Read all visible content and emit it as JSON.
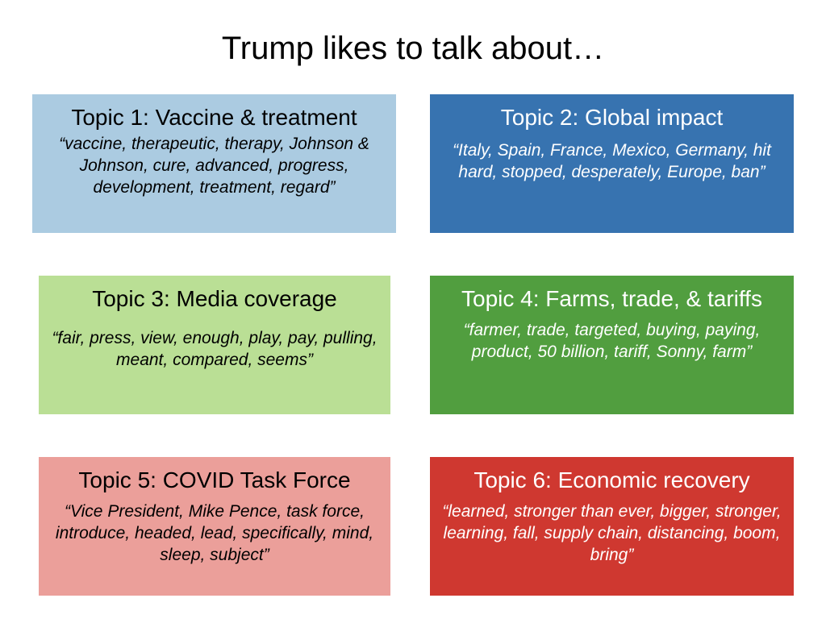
{
  "title": "Trump likes to talk about…",
  "topics": [
    {
      "heading": "Topic 1: Vaccine & treatment",
      "words": "“vaccine, therapeutic, therapy, Johnson & Johnson, cure, advanced, progress, development, treatment, regard”",
      "color": "#abcbe1",
      "text_color": "#000000"
    },
    {
      "heading": "Topic 2: Global impact",
      "words": "“Italy, Spain, France, Mexico, Germany, hit hard, stopped, desperately, Europe, ban”",
      "color": "#3773b0",
      "text_color": "#ffffff"
    },
    {
      "heading": "Topic 3: Media coverage",
      "words": "“fair, press, view, enough, play, pay, pulling, meant, compared, seems”",
      "color": "#badf95",
      "text_color": "#000000"
    },
    {
      "heading": "Topic 4: Farms, trade, & tariffs",
      "words": "“farmer, trade, targeted, buying, paying, product, 50 billion, tariff, Sonny, farm”",
      "color": "#519e3f",
      "text_color": "#ffffff"
    },
    {
      "heading": "Topic 5: COVID Task Force",
      "words": "“Vice President, Mike Pence, task force, introduce, headed, lead, specifically, mind, sleep, subject”",
      "color": "#eb9f9a",
      "text_color": "#000000"
    },
    {
      "heading": "Topic 6: Economic recovery",
      "words": "“learned, stronger than ever, bigger, stronger, learning, fall, supply chain, distancing, boom, bring”",
      "color": "#cf3830",
      "text_color": "#ffffff"
    }
  ]
}
